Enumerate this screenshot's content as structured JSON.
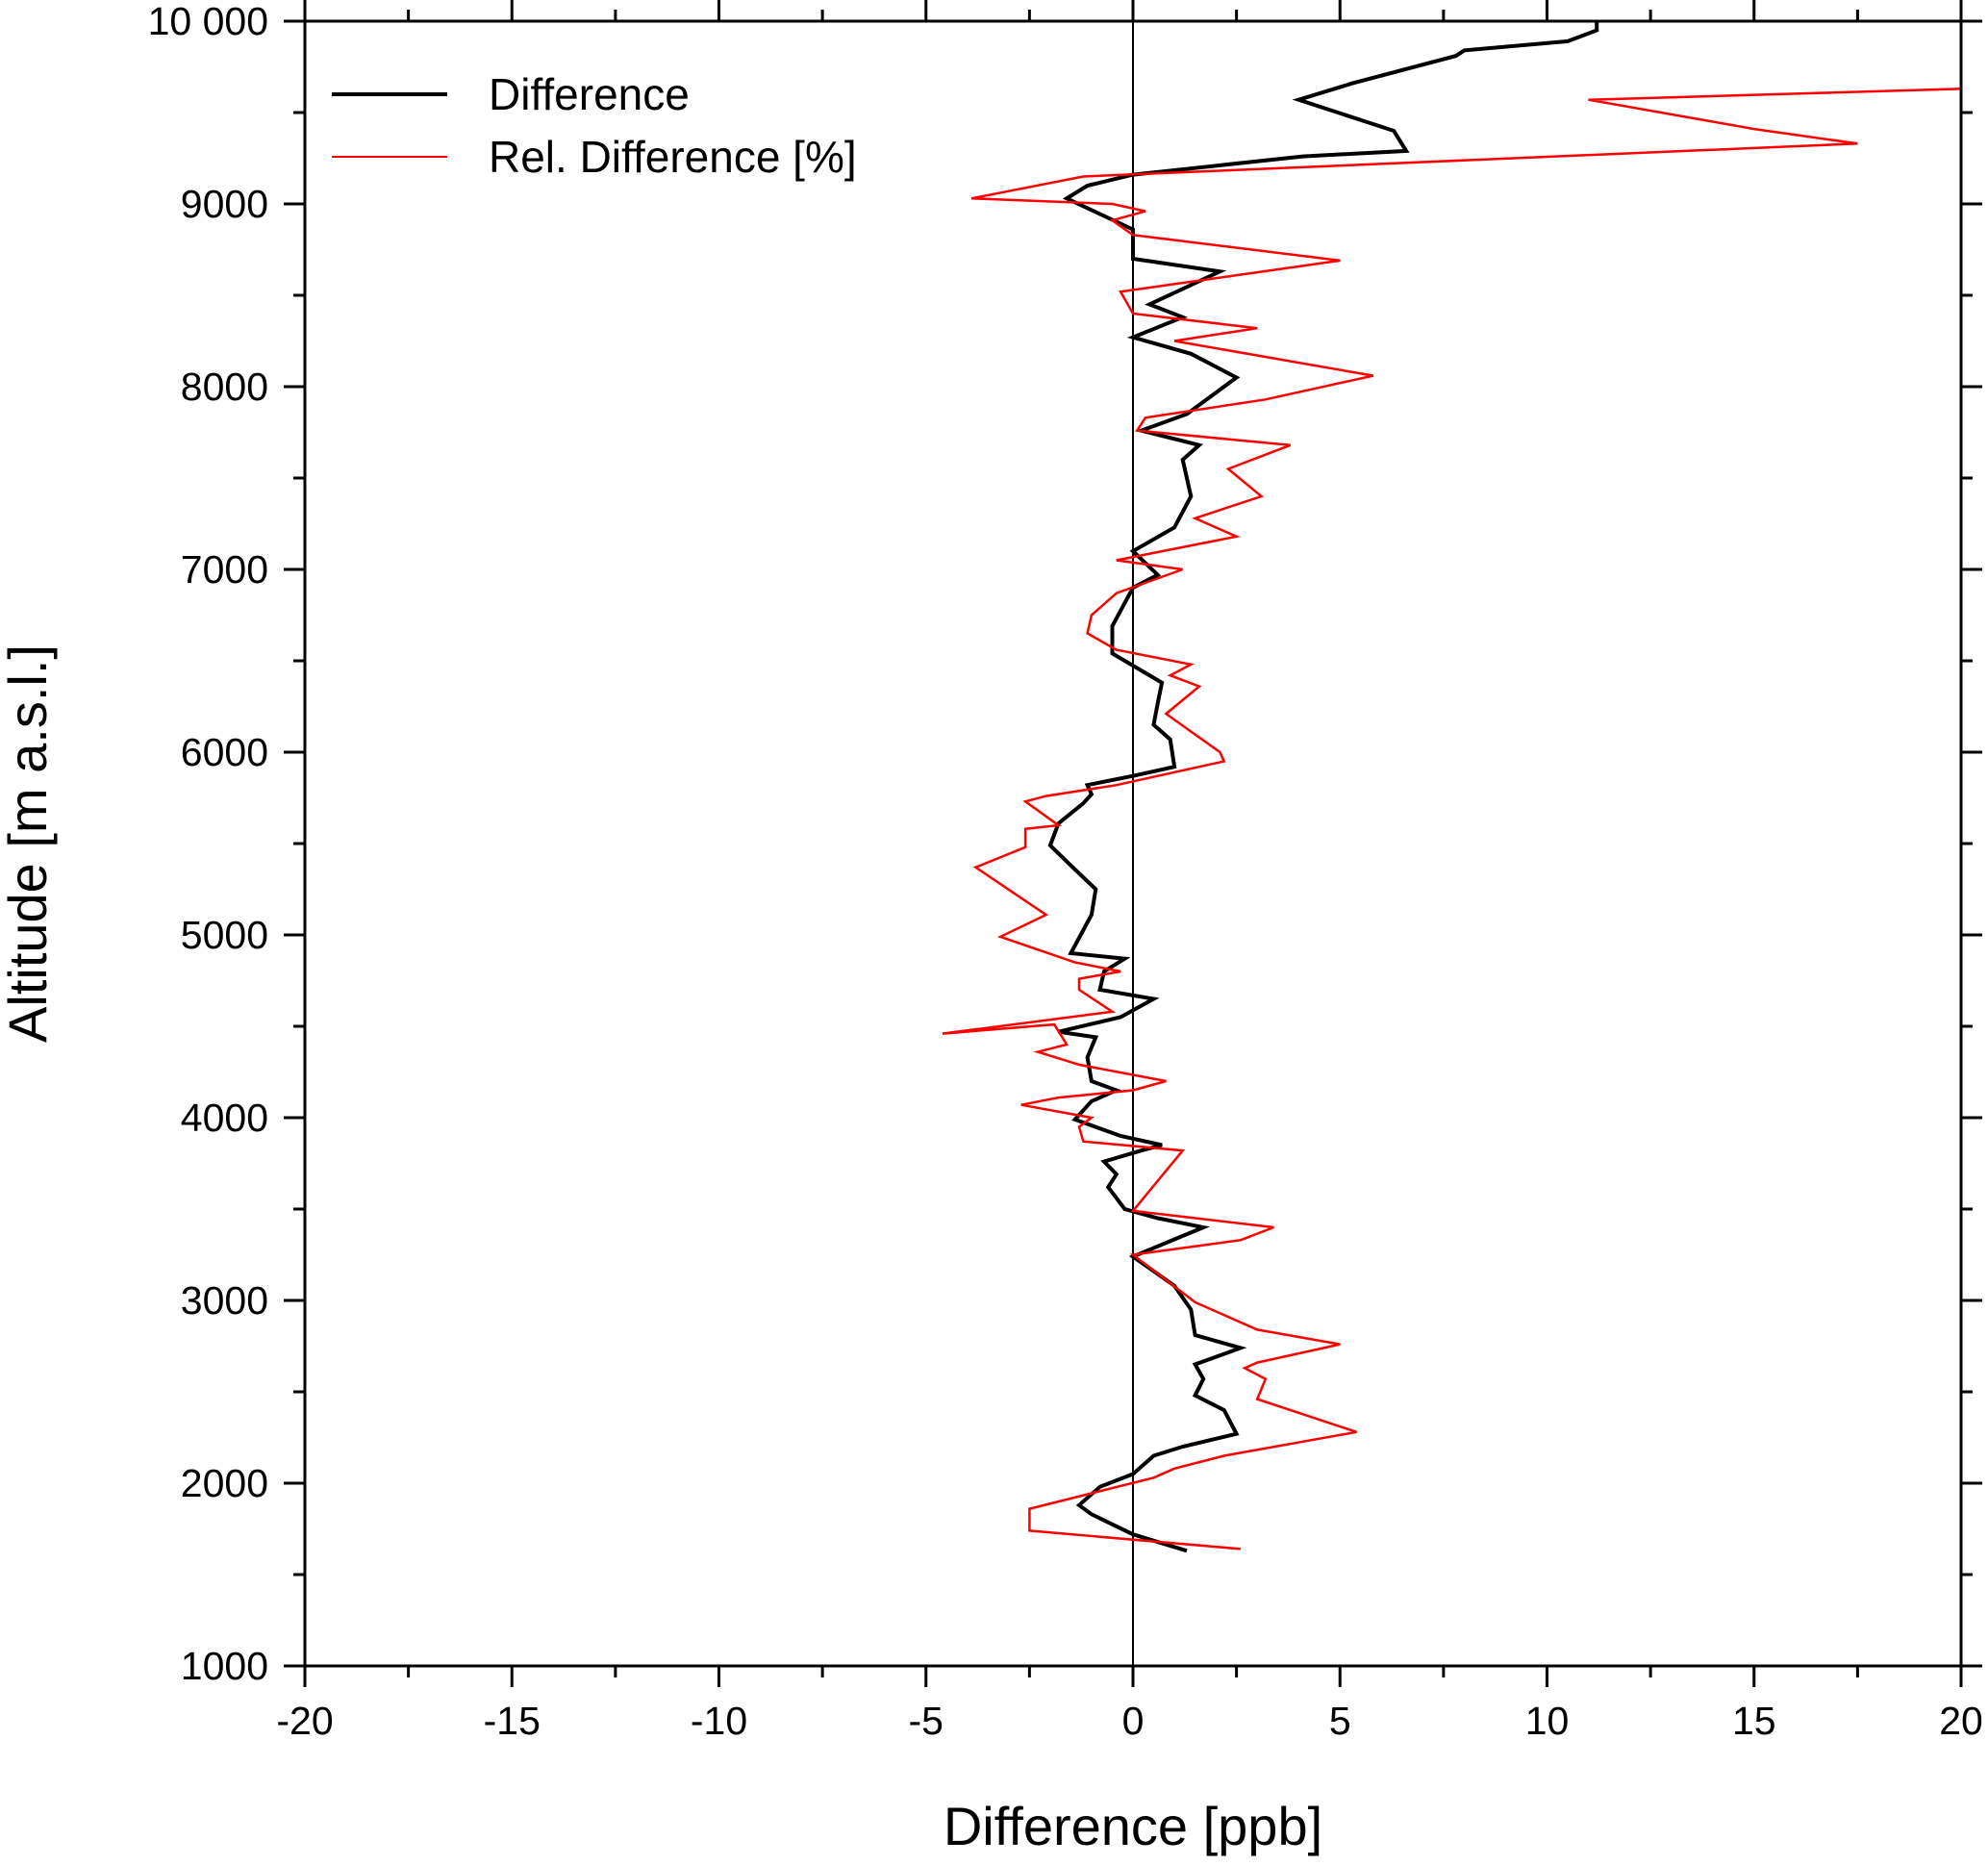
{
  "chart_data": {
    "type": "line",
    "title": "",
    "xlabel": "Difference [ppb]",
    "ylabel": "Altitude [m a.s.l.]",
    "xlim": [
      -20,
      20
    ],
    "ylim": [
      1000,
      10000
    ],
    "x_ticks": [
      -20,
      -15,
      -10,
      -5,
      0,
      5,
      10,
      15,
      20
    ],
    "x_tick_labels": [
      "-20",
      "-15",
      "-10",
      "-5",
      "0",
      "5",
      "10",
      "15",
      "20"
    ],
    "y_ticks": [
      1000,
      2000,
      3000,
      4000,
      5000,
      6000,
      7000,
      8000,
      9000,
      10000
    ],
    "y_tick_labels": [
      "1000",
      "2000",
      "3000",
      "4000",
      "5000",
      "6000",
      "7000",
      "8000",
      "9000",
      "10 000"
    ],
    "zero_line": 0,
    "legend_position": "top-left",
    "grid": false,
    "series": [
      {
        "name": "Difference",
        "color": "#000000",
        "x": [
          1.3,
          0.0,
          -1.0,
          -1.3,
          -0.8,
          0.0,
          0.5,
          1.2,
          2.5,
          2.2,
          1.5,
          1.7,
          1.5,
          2.6,
          1.5,
          1.4,
          1.0,
          0.0,
          1.7,
          0.6,
          -0.2,
          -0.6,
          -0.4,
          -0.7,
          0.2,
          0.7,
          -0.3,
          -1.4,
          -1.0,
          -0.4,
          -1.0,
          -1.1,
          -0.9,
          -1.8,
          -0.3,
          0.5,
          -0.8,
          -0.7,
          -0.2,
          -1.5,
          -1.0,
          -0.9,
          -1.5,
          -2.0,
          -1.8,
          -1.2,
          -1.0,
          -1.1,
          0.0,
          1.0,
          0.9,
          0.5,
          0.6,
          0.7,
          -0.5,
          -0.5,
          0.0,
          0.6,
          0.0,
          1.0,
          1.4,
          1.2,
          1.6,
          0.2,
          1.3,
          2.5,
          1.4,
          0.0,
          1.2,
          0.4,
          2.1,
          0.0,
          0.0,
          -1.6,
          -1.1,
          0.0,
          4.1,
          6.6,
          6.3,
          4.0,
          5.3,
          7.8,
          8.0,
          10.5,
          11.2,
          11.2
        ],
        "y": [
          1630,
          1720,
          1830,
          1880,
          1980,
          2050,
          2150,
          2200,
          2270,
          2400,
          2480,
          2570,
          2650,
          2740,
          2810,
          2950,
          3080,
          3240,
          3400,
          3450,
          3500,
          3620,
          3690,
          3760,
          3820,
          3850,
          3900,
          3990,
          4090,
          4150,
          4200,
          4330,
          4440,
          4470,
          4550,
          4650,
          4700,
          4800,
          4870,
          4900,
          5110,
          5250,
          5380,
          5490,
          5610,
          5720,
          5770,
          5820,
          5870,
          5920,
          6070,
          6150,
          6270,
          6380,
          6540,
          6690,
          6900,
          6970,
          7100,
          7230,
          7400,
          7600,
          7680,
          7760,
          7850,
          8050,
          8180,
          8270,
          8380,
          8450,
          8630,
          8700,
          8860,
          9030,
          9100,
          9160,
          9260,
          9290,
          9400,
          9570,
          9660,
          9810,
          9840,
          9890,
          9950,
          10000
        ]
      },
      {
        "name": "Rel. Difference [%]",
        "color": "#ff0000",
        "x": [
          2.6,
          -2.5,
          -2.5,
          0.5,
          1.0,
          2.2,
          5.4,
          3.0,
          3.2,
          2.7,
          3.0,
          5.0,
          3.0,
          1.5,
          0.0,
          2.6,
          3.4,
          0.0,
          1.2,
          -1.2,
          -1.3,
          -1.0,
          -2.7,
          -1.8,
          0.0,
          0.8,
          -1.3,
          -2.3,
          -1.6,
          -1.9,
          -4.6,
          -0.5,
          -1.3,
          -1.3,
          -0.3,
          -1.4,
          -3.2,
          -2.1,
          -3.8,
          -2.6,
          -2.6,
          -1.8,
          -2.6,
          -2.1,
          -0.4,
          2.2,
          2.1,
          0.8,
          1.6,
          0.9,
          1.4,
          -0.4,
          -1.1,
          -1.0,
          -0.4,
          1.2,
          -0.4,
          2.5,
          1.5,
          3.1,
          2.3,
          3.8,
          0.1,
          0.3,
          3.2,
          5.8,
          1.0,
          3.0,
          0.0,
          -0.3,
          5.0,
          0.0,
          -0.5,
          0.3,
          -0.5,
          -3.9,
          -1.2,
          17.5,
          15.0,
          11.0,
          20.0,
          20.0
        ],
        "y": [
          1640,
          1740,
          1860,
          2030,
          2080,
          2150,
          2280,
          2460,
          2570,
          2630,
          2660,
          2760,
          2840,
          2990,
          3250,
          3330,
          3400,
          3490,
          3820,
          3870,
          3950,
          4000,
          4070,
          4110,
          4150,
          4200,
          4290,
          4360,
          4400,
          4510,
          4460,
          4580,
          4700,
          4760,
          4800,
          4850,
          4990,
          5110,
          5370,
          5480,
          5580,
          5600,
          5730,
          5760,
          5820,
          5950,
          6000,
          6210,
          6360,
          6420,
          6480,
          6560,
          6650,
          6750,
          6870,
          7000,
          7050,
          7180,
          7280,
          7400,
          7550,
          7680,
          7760,
          7830,
          7930,
          8060,
          8250,
          8320,
          8400,
          8520,
          8690,
          8830,
          8910,
          8960,
          9000,
          9030,
          9150,
          9330,
          9410,
          9570,
          9630,
          9780
        ]
      }
    ]
  }
}
